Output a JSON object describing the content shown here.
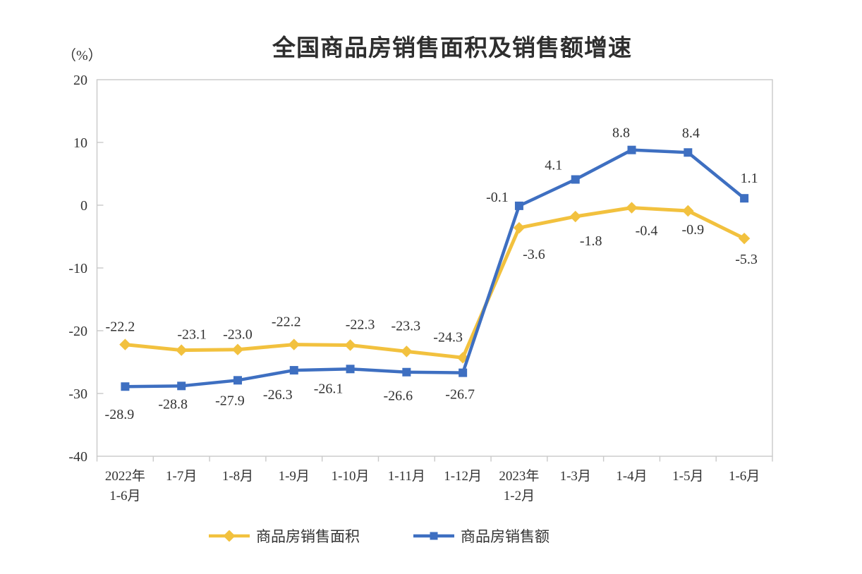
{
  "chart_data": {
    "type": "line",
    "title": "全国商品房销售面积及销售额增速",
    "unit_label": "（%）",
    "categories": [
      [
        "2022年",
        "1-6月"
      ],
      [
        "1-7月"
      ],
      [
        "1-8月"
      ],
      [
        "1-9月"
      ],
      [
        "1-10月"
      ],
      [
        "1-11月"
      ],
      [
        "1-12月"
      ],
      [
        "2023年",
        "1-2月"
      ],
      [
        "1-3月"
      ],
      [
        "1-4月"
      ],
      [
        "1-5月"
      ],
      [
        "1-6月"
      ]
    ],
    "y_axis": {
      "min": -40,
      "max": 20,
      "step": 10,
      "tick_labels": [
        20,
        10,
        0,
        -10,
        -20,
        -30,
        -40
      ]
    },
    "series": [
      {
        "name": "商品房销售面积",
        "marker": "diamond",
        "color": "#F2C13E",
        "values": [
          -22.2,
          -23.1,
          -23.0,
          -22.2,
          -22.3,
          -23.3,
          -24.3,
          -3.6,
          -1.8,
          -0.4,
          -0.9,
          -5.3
        ],
        "labels": [
          "-22.2",
          "-23.1",
          "-23.0",
          "-22.2",
          "-22.3",
          "-23.3",
          "-24.3",
          "-3.6",
          "-1.8",
          "-0.4",
          "-0.9",
          "-5.3"
        ]
      },
      {
        "name": "商品房销售额",
        "marker": "square",
        "color": "#3E6FC1",
        "values": [
          -28.9,
          -28.8,
          -27.9,
          -26.3,
          -26.1,
          -26.6,
          -26.7,
          -0.1,
          4.1,
          8.8,
          8.4,
          1.1
        ],
        "labels": [
          "-28.9",
          "-28.8",
          "-27.9",
          "-26.3",
          "-26.1",
          "-26.6",
          "-26.7",
          "-0.1",
          "4.1",
          "8.8",
          "8.4",
          "1.1"
        ]
      }
    ],
    "legend_position": "bottom",
    "grid": false,
    "colors": {
      "axis": "#C9C9C9",
      "text": "#333333"
    }
  }
}
